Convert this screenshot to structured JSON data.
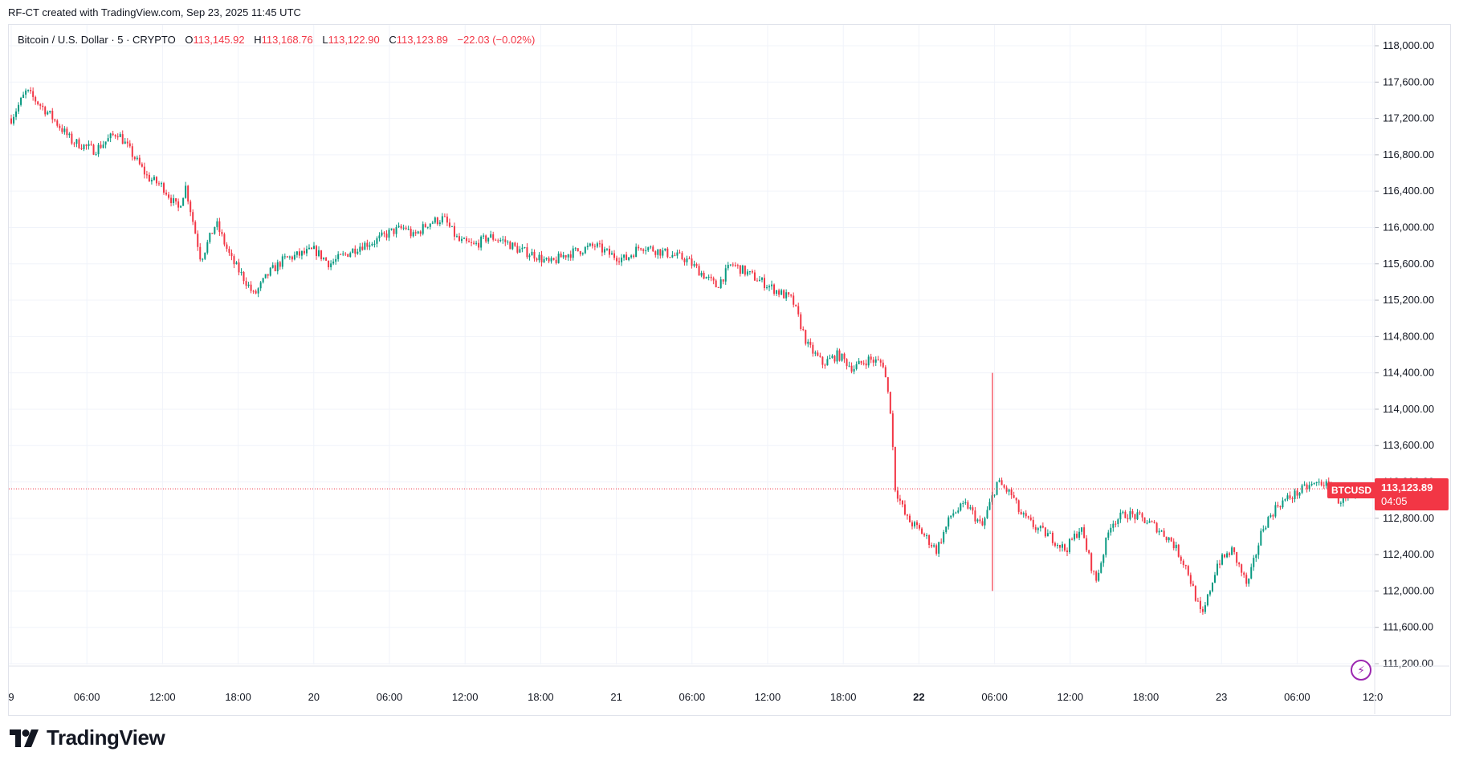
{
  "caption": "RF-CT created with TradingView.com, Sep 23, 2025 11:45 UTC",
  "legend": {
    "symbol": "Bitcoin / U.S. Dollar · 5 · CRYPTO",
    "open_label": "O",
    "open": "113,145.92",
    "high_label": "H",
    "high": "113,168.76",
    "low_label": "L",
    "low": "113,122.90",
    "close_label": "C",
    "close": "113,123.89",
    "change": "−22.03 (−0.02%)"
  },
  "last_price": {
    "symbol": "BTCUSD",
    "value": "113,123.89",
    "countdown": "04:05"
  },
  "brand": {
    "name": "TradingView"
  },
  "colors": {
    "up": "#089981",
    "down": "#f23645",
    "grid": "#f0f3fa"
  },
  "chart_data": {
    "type": "candlestick",
    "interval": "5 min",
    "y_ticks": [
      "118,000.00",
      "117,600.00",
      "117,200.00",
      "116,800.00",
      "116,400.00",
      "116,000.00",
      "115,600.00",
      "115,200.00",
      "114,800.00",
      "114,400.00",
      "114,000.00",
      "113,600.00",
      "113,200.00",
      "112,800.00",
      "112,400.00",
      "112,000.00",
      "111,600.00",
      "111,200.00"
    ],
    "ylim": [
      111000,
      118200
    ],
    "x_ticks": [
      {
        "label": "9",
        "bold": false
      },
      {
        "label": "06:00",
        "bold": false
      },
      {
        "label": "12:00",
        "bold": false
      },
      {
        "label": "18:00",
        "bold": false
      },
      {
        "label": "20",
        "bold": false
      },
      {
        "label": "06:00",
        "bold": false
      },
      {
        "label": "12:00",
        "bold": false
      },
      {
        "label": "18:00",
        "bold": false
      },
      {
        "label": "21",
        "bold": false
      },
      {
        "label": "06:00",
        "bold": false
      },
      {
        "label": "12:00",
        "bold": false
      },
      {
        "label": "18:00",
        "bold": false
      },
      {
        "label": "22",
        "bold": true
      },
      {
        "label": "06:00",
        "bold": false
      },
      {
        "label": "12:00",
        "bold": false
      },
      {
        "label": "18:00",
        "bold": false
      },
      {
        "label": "23",
        "bold": false
      },
      {
        "label": "06:00",
        "bold": false
      },
      {
        "label": "12:0",
        "bold": false
      }
    ],
    "approx_close_path": [
      [
        0,
        117200
      ],
      [
        4,
        117500
      ],
      [
        10,
        117250
      ],
      [
        16,
        116950
      ],
      [
        22,
        116850
      ],
      [
        28,
        117050
      ],
      [
        32,
        116800
      ],
      [
        36,
        116550
      ],
      [
        40,
        116450
      ],
      [
        44,
        116200
      ],
      [
        46,
        116450
      ],
      [
        50,
        115650
      ],
      [
        54,
        116050
      ],
      [
        58,
        115650
      ],
      [
        62,
        115400
      ],
      [
        64,
        115250
      ],
      [
        68,
        115500
      ],
      [
        72,
        115650
      ],
      [
        76,
        115700
      ],
      [
        80,
        115750
      ],
      [
        84,
        115600
      ],
      [
        88,
        115700
      ],
      [
        92,
        115800
      ],
      [
        96,
        115850
      ],
      [
        100,
        115950
      ],
      [
        104,
        116000
      ],
      [
        106,
        115900
      ],
      [
        110,
        116050
      ],
      [
        114,
        116100
      ],
      [
        118,
        115850
      ],
      [
        122,
        115800
      ],
      [
        126,
        115900
      ],
      [
        130,
        115850
      ],
      [
        134,
        115750
      ],
      [
        138,
        115700
      ],
      [
        142,
        115600
      ],
      [
        146,
        115700
      ],
      [
        150,
        115750
      ],
      [
        154,
        115800
      ],
      [
        158,
        115700
      ],
      [
        162,
        115650
      ],
      [
        166,
        115800
      ],
      [
        170,
        115750
      ],
      [
        174,
        115700
      ],
      [
        178,
        115650
      ],
      [
        182,
        115500
      ],
      [
        186,
        115350
      ],
      [
        190,
        115600
      ],
      [
        194,
        115500
      ],
      [
        198,
        115400
      ],
      [
        202,
        115300
      ],
      [
        206,
        115200
      ],
      [
        210,
        114700
      ],
      [
        214,
        114500
      ],
      [
        218,
        114600
      ],
      [
        222,
        114450
      ],
      [
        226,
        114550
      ],
      [
        230,
        114500
      ],
      [
        232,
        113950
      ],
      [
        233,
        113150
      ],
      [
        236,
        112800
      ],
      [
        240,
        112650
      ],
      [
        244,
        112450
      ],
      [
        248,
        112850
      ],
      [
        252,
        112950
      ],
      [
        256,
        112700
      ],
      [
        260,
        113200
      ],
      [
        264,
        113050
      ],
      [
        266,
        112850
      ],
      [
        270,
        112700
      ],
      [
        274,
        112600
      ],
      [
        278,
        112450
      ],
      [
        282,
        112700
      ],
      [
        286,
        112100
      ],
      [
        290,
        112750
      ],
      [
        294,
        112850
      ],
      [
        298,
        112800
      ],
      [
        302,
        112700
      ],
      [
        306,
        112550
      ],
      [
        310,
        112250
      ],
      [
        314,
        111700
      ],
      [
        318,
        112300
      ],
      [
        322,
        112450
      ],
      [
        326,
        112050
      ],
      [
        330,
        112700
      ],
      [
        334,
        112950
      ],
      [
        338,
        113050
      ],
      [
        342,
        113150
      ],
      [
        346,
        113200
      ],
      [
        350,
        113000
      ],
      [
        354,
        113000
      ],
      [
        357,
        113124
      ]
    ]
  }
}
